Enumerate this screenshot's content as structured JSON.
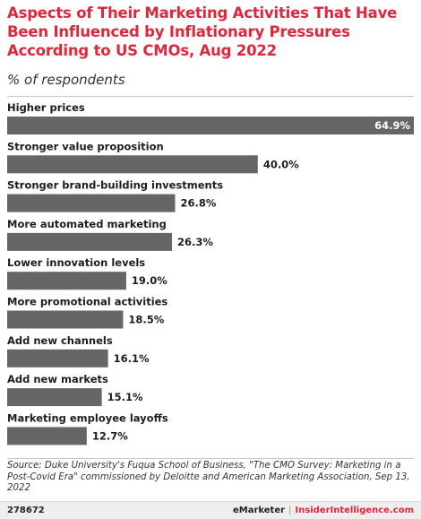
{
  "header": {
    "title": "Aspects of Their Marketing Activities That Have Been Influenced by Inflationary Pressures According to US CMOs, Aug 2022",
    "subtitle": "% of respondents"
  },
  "chart_data": {
    "type": "bar",
    "orientation": "horizontal",
    "title": "Aspects of Their Marketing Activities That Have Been Influenced by Inflationary Pressures According to US CMOs, Aug 2022",
    "subtitle": "% of respondents",
    "categories": [
      "Higher prices",
      "Stronger value proposition",
      "Stronger brand-building investments",
      "More automated marketing",
      "Lower innovation levels",
      "More promotional activities",
      "Add new channels",
      "Add new markets",
      "Marketing employee layoffs"
    ],
    "values": [
      64.9,
      40.0,
      26.8,
      26.3,
      19.0,
      18.5,
      16.1,
      15.1,
      12.7
    ],
    "labels": [
      "64.9%",
      "40.0%",
      "26.8%",
      "26.3%",
      "19.0%",
      "18.5%",
      "16.1%",
      "15.1%",
      "12.7%"
    ],
    "xlim": [
      0,
      64.9
    ],
    "grid": false,
    "legend": "none",
    "bar_color": "#666666"
  },
  "footer": {
    "source": "Source: Duke University's Fuqua School of Business, \"The CMO Survey: Marketing in a Post-Covid Era\" commissioned by Deloitte and American Marketing Association, Sep 13, 2022",
    "chart_id": "278672",
    "brand_emarketer": "eMarketer",
    "brand_separator": "|",
    "brand_insider": "InsiderIntelligence.com"
  }
}
